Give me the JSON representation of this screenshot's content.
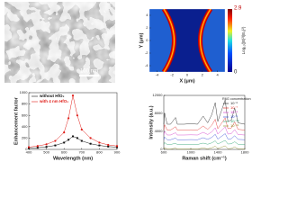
{
  "sem_image": {
    "scale_bar": "100 nm"
  },
  "chart_data": [
    {
      "type": "field_map",
      "x_label": "X (μm)",
      "y_label": "Y (μm)",
      "xlim": [
        -5,
        5
      ],
      "ylim": [
        -5,
        5
      ],
      "xticks": [
        -4,
        -2,
        0,
        2,
        4
      ],
      "yticks": [
        -4,
        -2,
        0,
        2,
        4
      ],
      "colorbar": {
        "label": "Log₁₀(|E|²/|E₀|²)",
        "min": 0,
        "max": 2.9
      }
    },
    {
      "type": "line",
      "x_label": "Wavelength (nm)",
      "y_label": "Enhancement factor",
      "x": [
        400,
        450,
        500,
        550,
        600,
        625,
        650,
        675,
        700,
        750,
        800,
        850,
        900
      ],
      "xlim": [
        400,
        900
      ],
      "ylim": [
        0,
        1000
      ],
      "xticks": [
        400,
        500,
        600,
        700,
        800,
        900
      ],
      "yticks": [
        0,
        200,
        400,
        600,
        800,
        1000
      ],
      "markers": true,
      "series": [
        {
          "name": "without HfO₂",
          "color": "#111111",
          "values": [
            20,
            30,
            45,
            70,
            120,
            170,
            230,
            200,
            150,
            100,
            70,
            50,
            40
          ]
        },
        {
          "name": "with 4 nm HfO₂",
          "color": "#e0201b",
          "values": [
            40,
            60,
            90,
            150,
            300,
            550,
            950,
            600,
            350,
            200,
            120,
            80,
            60
          ]
        }
      ]
    },
    {
      "type": "line",
      "x_label": "Raman shift (cm⁻¹)",
      "y_label": "Intensity (a.u.)",
      "legend_title": "R6G concentration (M)",
      "x": [
        600,
        612,
        650,
        700,
        774,
        800,
        900,
        1000,
        1100,
        1183,
        1250,
        1310,
        1362,
        1400,
        1509,
        1550,
        1600,
        1650,
        1700,
        1800
      ],
      "xlim": [
        600,
        1800
      ],
      "ylim": [
        0,
        12000
      ],
      "xticks": [
        600,
        1000,
        1400,
        1800
      ],
      "yticks": [
        0,
        4000,
        8000,
        12000
      ],
      "markers": false,
      "series": [
        {
          "name": "10⁻⁶",
          "color": "#111111",
          "values": [
            5600,
            8000,
            5600,
            5600,
            7100,
            5600,
            5600,
            5720,
            5600,
            7400,
            5900,
            7700,
            10400,
            6200,
            11000,
            6200,
            6500,
            9200,
            5900,
            5600
          ]
        },
        {
          "name": "10⁻⁷",
          "color": "#e0201b",
          "values": [
            4300,
            5500,
            4300,
            4300,
            5050,
            4300,
            4300,
            4360,
            4300,
            5200,
            4450,
            5350,
            6700,
            4600,
            7000,
            4600,
            4750,
            6100,
            4450,
            4300
          ]
        },
        {
          "name": "10⁻⁸",
          "color": "#d02fc8",
          "values": [
            3200,
            4000,
            3200,
            3200,
            3700,
            3200,
            3200,
            3240,
            3200,
            3800,
            3300,
            3900,
            4800,
            3400,
            5000,
            3400,
            3500,
            4400,
            3300,
            3200
          ]
        },
        {
          "name": "10⁻⁹",
          "color": "#2a3fd6",
          "values": [
            2150,
            2750,
            2150,
            2150,
            2525,
            2150,
            2150,
            2180,
            2150,
            2600,
            2225,
            2675,
            3350,
            2300,
            3500,
            2300,
            2375,
            3050,
            2225,
            2150
          ]
        },
        {
          "name": "10⁻¹⁰",
          "color": "#1e9e6a",
          "values": [
            1100,
            1500,
            1100,
            1100,
            1350,
            1100,
            1100,
            1120,
            1100,
            1400,
            1150,
            1450,
            1900,
            1200,
            2000,
            1200,
            1250,
            1700,
            1150,
            1100
          ]
        },
        {
          "name": "10⁻¹¹",
          "color": "#8a8a1e",
          "values": [
            80,
            400,
            80,
            80,
            280,
            80,
            80,
            96,
            80,
            320,
            120,
            360,
            720,
            160,
            800,
            160,
            200,
            560,
            120,
            80
          ]
        }
      ]
    }
  ]
}
